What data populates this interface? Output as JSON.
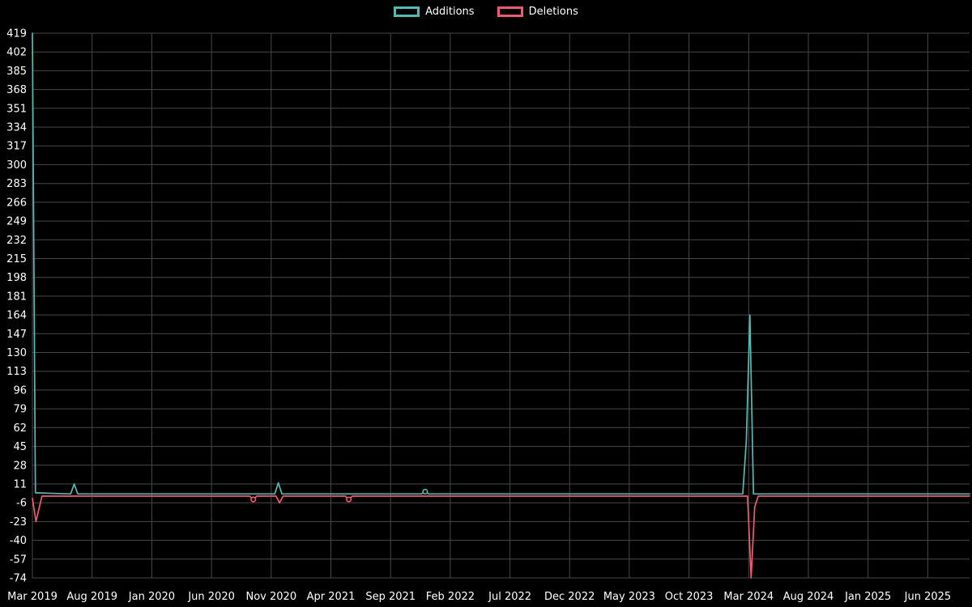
{
  "page": {
    "background_color": "#000000",
    "text_color": "#ffffff"
  },
  "chart_data": {
    "type": "line",
    "title": "",
    "xlabel": "",
    "ylabel": "",
    "time_span": "Mar 2019 - Jun 2025",
    "legend": {
      "position": "top-center",
      "items": [
        {
          "label": "Additions",
          "color": "#57b9b3"
        },
        {
          "label": "Deletions",
          "color": "#ef5b73"
        }
      ]
    },
    "grid": {
      "color": "#484848",
      "horizontal": true,
      "vertical": true
    },
    "x_axis": {
      "unit": "month",
      "labels": [
        "Mar 2019",
        "Aug 2019",
        "Jan 2020",
        "Jun 2020",
        "Nov 2020",
        "Apr 2021",
        "Sep 2021",
        "Feb 2022",
        "Jul 2022",
        "Dec 2022",
        "May 2023",
        "Oct 2023",
        "Mar 2024",
        "Aug 2024",
        "Jan 2025",
        "Jun 2025"
      ],
      "label_month_indices": [
        0,
        5,
        10,
        15,
        20,
        25,
        30,
        35,
        40,
        45,
        50,
        55,
        60,
        65,
        70,
        75
      ],
      "domain_months": [
        0,
        78.5
      ]
    },
    "y_axis": {
      "min": -74,
      "max": 419,
      "tick_step": 17,
      "ticks": [
        419,
        402,
        385,
        368,
        351,
        334,
        317,
        300,
        283,
        266,
        249,
        232,
        215,
        198,
        181,
        164,
        147,
        130,
        113,
        96,
        79,
        62,
        45,
        28,
        11,
        -6,
        -23,
        -40,
        -57,
        -74
      ]
    },
    "series": [
      {
        "name": "Additions",
        "color": "#57b9b3",
        "baseline_value": 2,
        "line_points": [
          [
            0,
            419
          ],
          [
            0.25,
            3
          ],
          [
            3.2,
            2
          ],
          [
            3.5,
            11
          ],
          [
            3.8,
            2
          ],
          [
            20.3,
            2
          ],
          [
            20.6,
            12
          ],
          [
            20.9,
            2
          ],
          [
            32.6,
            2
          ],
          [
            32.9,
            4
          ],
          [
            33.2,
            2
          ],
          [
            59.5,
            2
          ],
          [
            59.8,
            50
          ],
          [
            60.1,
            164
          ],
          [
            60.4,
            2
          ],
          [
            78.5,
            2
          ]
        ],
        "markers": [
          [
            32.9,
            4
          ]
        ]
      },
      {
        "name": "Deletions",
        "color": "#ef5b73",
        "baseline_value": 0,
        "line_points": [
          [
            0,
            -2
          ],
          [
            0.3,
            -23
          ],
          [
            0.8,
            0
          ],
          [
            18.2,
            0
          ],
          [
            18.5,
            -3
          ],
          [
            18.8,
            0
          ],
          [
            20.4,
            0
          ],
          [
            20.7,
            -6
          ],
          [
            21.0,
            0
          ],
          [
            26.2,
            0
          ],
          [
            26.5,
            -3
          ],
          [
            26.8,
            0
          ],
          [
            59.9,
            0
          ],
          [
            60.2,
            -74
          ],
          [
            60.5,
            -10
          ],
          [
            60.8,
            0
          ],
          [
            78.5,
            0
          ]
        ],
        "markers": [
          [
            18.5,
            -3
          ],
          [
            26.5,
            -3
          ]
        ]
      }
    ],
    "key_points": [
      {
        "x": "Mar 2019",
        "additions": 419,
        "deletions": 23
      },
      {
        "x": "Jul 2019",
        "additions": 11,
        "deletions": 0
      },
      {
        "x": "Oct 2020",
        "additions": 0,
        "deletions": 3
      },
      {
        "x": "Nov/Dec 2020",
        "additions": 12,
        "deletions": 6
      },
      {
        "x": "May/Jun 2021",
        "additions": 0,
        "deletions": 3
      },
      {
        "x": "Dec 2021",
        "additions": 4,
        "deletions": 0
      },
      {
        "x": "Mar 2024",
        "additions": 164,
        "deletions": 74
      }
    ]
  }
}
